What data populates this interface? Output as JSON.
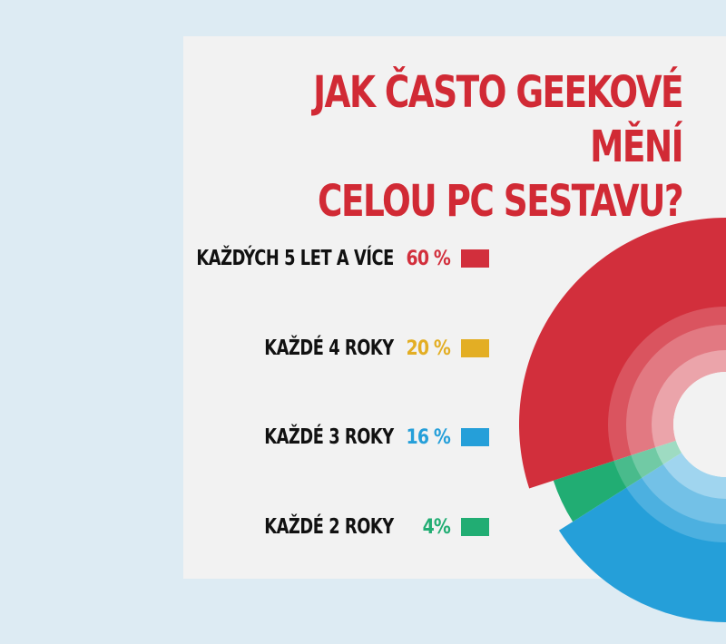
{
  "chart_data": {
    "type": "pie",
    "title_lines": [
      "JAK ČASTO GEEKOVÉ MĚNÍ",
      "CELOU PC SESTAVU?"
    ],
    "title_color": "#d12a35",
    "slices": [
      {
        "label": "KAŽDÝCH 5 LET A VÍCE",
        "value_text": "60 %",
        "value": 60,
        "color": "#d22f3c"
      },
      {
        "label": "KAŽDÉ 4 ROKY",
        "value_text": "20 %",
        "value": 20,
        "color": "#e3ae24"
      },
      {
        "label": "KAŽDÉ 3 ROKY",
        "value_text": "16 %",
        "value": 16,
        "color": "#259fd9"
      },
      {
        "label": "KAŽDÉ 2 ROKY",
        "value_text": "4%",
        "value": 4,
        "color": "#21ad73"
      }
    ],
    "legend_position": "left"
  }
}
